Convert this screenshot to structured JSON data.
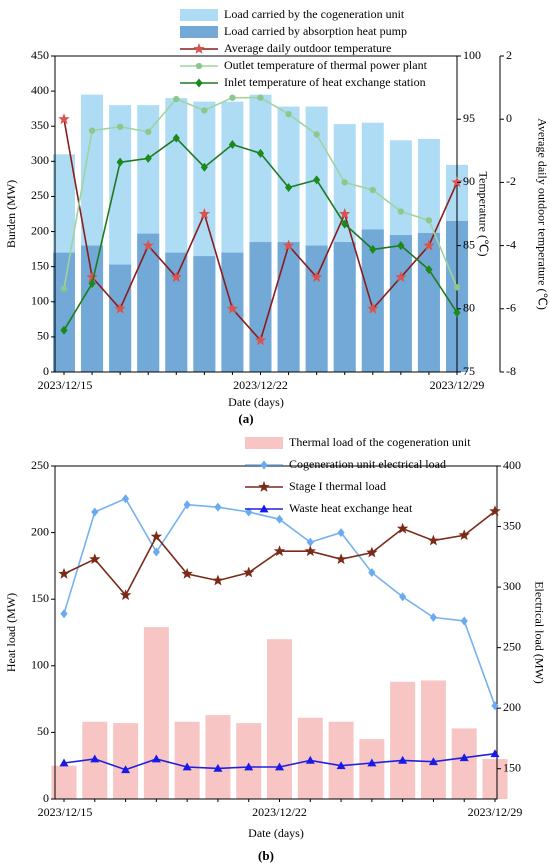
{
  "chart_data": [
    {
      "type": "combo",
      "caption": "(a)",
      "xlabel": "Date (days)",
      "categories": [
        "2023/12/15",
        null,
        null,
        null,
        null,
        null,
        null,
        "2023/12/22",
        null,
        null,
        null,
        null,
        null,
        null,
        "2023/12/29"
      ],
      "ylabel": "Burden (MW)",
      "ylim": [
        0,
        450
      ],
      "yticks": [
        0,
        50,
        100,
        150,
        200,
        250,
        300,
        350,
        400,
        450
      ],
      "y2label": "Temperature (℃)",
      "y2lim": [
        75,
        100
      ],
      "y2ticks": [
        75,
        80,
        85,
        90,
        95,
        100
      ],
      "y3label": "Average daily outdoor temperature (℃)",
      "y3lim": [
        -8,
        2
      ],
      "y3ticks": [
        -8,
        -6,
        -4,
        -2,
        0,
        2
      ],
      "series": [
        {
          "name": "Load carried by the cogeneration unit",
          "kind": "bar",
          "color": "#aedcf5",
          "values": [
            310,
            395,
            380,
            380,
            390,
            385,
            385,
            395,
            378,
            378,
            353,
            355,
            330,
            332,
            295
          ]
        },
        {
          "name": "Load carried by absorption heat pump",
          "kind": "bar",
          "color": "#72a9d6",
          "values": [
            170,
            180,
            153,
            197,
            170,
            165,
            170,
            185,
            185,
            180,
            185,
            203,
            195,
            198,
            215
          ]
        },
        {
          "name": "Average daily outdoor temperature",
          "kind": "line",
          "marker": "star",
          "color": "#8b1c1c",
          "marker_color": "#d9534f",
          "axis": "y3",
          "values": [
            0,
            -5,
            -6,
            -4,
            -5,
            -3,
            -6,
            -7,
            -4,
            -5,
            -3,
            -6,
            -5,
            -4,
            -2
          ]
        },
        {
          "name": "Outlet temperature of thermal power plant",
          "kind": "line",
          "marker": "circle",
          "color": "#9fd39f",
          "marker_color": "#8cc78c",
          "axis": "y2",
          "values": [
            81.6,
            94.1,
            94.4,
            94.0,
            96.6,
            95.7,
            96.7,
            96.7,
            95.4,
            93.8,
            90.0,
            89.4,
            87.7,
            87.0,
            81.7
          ]
        },
        {
          "name": "Inlet temperature of heat exchange station",
          "kind": "line",
          "marker": "diamond",
          "color": "#1f7a1f",
          "marker_color": "#1a8a1a",
          "axis": "y2",
          "values": [
            78.3,
            82.0,
            91.6,
            91.9,
            93.5,
            91.2,
            93.0,
            92.3,
            89.6,
            90.2,
            86.7,
            84.7,
            85.0,
            83.1,
            79.7
          ]
        }
      ]
    },
    {
      "type": "combo",
      "caption": "(b)",
      "xlabel": "Date (days)",
      "categories": [
        "2023/12/15",
        null,
        null,
        null,
        null,
        null,
        null,
        "2023/12/22",
        null,
        null,
        null,
        null,
        null,
        null,
        "2023/12/29"
      ],
      "ylabel": "Heat load (MW)",
      "ylim": [
        0,
        250
      ],
      "yticks": [
        0,
        50,
        100,
        150,
        200,
        250
      ],
      "y2label": "Electrical load (MW)",
      "y2lim": [
        125,
        400
      ],
      "y2ticks": [
        150,
        200,
        250,
        300,
        350,
        400
      ],
      "series": [
        {
          "name": "Thermal load of the cogeneration unit",
          "kind": "bar",
          "color": "#f7c6c4",
          "values": [
            25,
            58,
            57,
            129,
            58,
            63,
            57,
            120,
            61,
            58,
            45,
            88,
            89,
            53,
            30
          ]
        },
        {
          "name": "Cogeneration unit electrical load",
          "kind": "line",
          "marker": "diamond",
          "color": "#74b3ee",
          "marker_color": "#6aaaf0",
          "axis": "y2",
          "values": [
            278,
            362,
            373,
            329,
            368,
            366,
            362,
            356,
            337,
            345,
            312,
            292,
            275,
            272,
            202
          ]
        },
        {
          "name": "Stage I thermal load",
          "kind": "line",
          "marker": "star",
          "color": "#7a2a18",
          "marker_color": "#7a2a18",
          "values": [
            169,
            180,
            153,
            197,
            169,
            164,
            170,
            186,
            186,
            180,
            185,
            203,
            194,
            198,
            216
          ]
        },
        {
          "name": "Waste heat exchange heat",
          "kind": "line",
          "marker": "triangle",
          "color": "#2020e0",
          "marker_color": "#1a1ae8",
          "values": [
            27,
            30,
            22,
            30,
            24,
            23,
            24,
            24,
            29,
            25,
            27,
            29,
            28,
            31,
            34
          ]
        }
      ]
    }
  ]
}
